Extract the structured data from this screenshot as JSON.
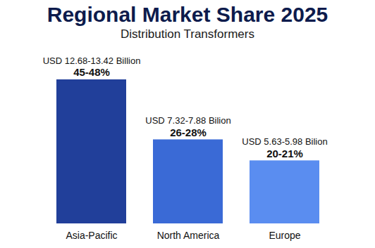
{
  "chart_data": {
    "type": "bar",
    "title": "Regional Market Share 2025",
    "subtitle": "Distribution Transformers",
    "categories": [
      "Asia-Pacific",
      "North America",
      "Europe"
    ],
    "values": [
      48,
      28,
      21
    ],
    "value_labels": [
      "45-48%",
      "26-28%",
      "20-21%"
    ],
    "annotations": [
      "USD 12.68-13.42 Billion",
      "USD 7.32-7.88 Bilion",
      "USD 5.63-5.98 Bilion"
    ],
    "colors": [
      "#213f9a",
      "#3a6ad6",
      "#5a8df0"
    ],
    "data_labels": true,
    "tick_labels": "x"
  }
}
